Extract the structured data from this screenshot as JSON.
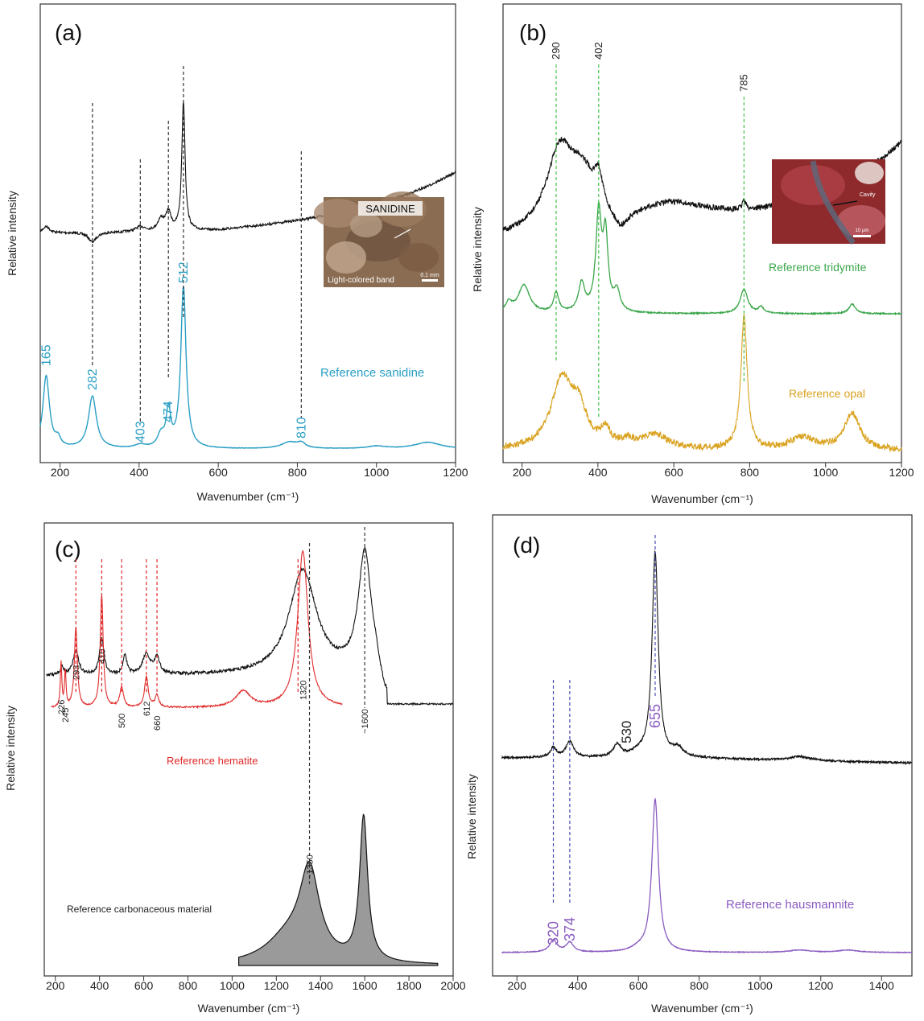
{
  "figure": {
    "panels": [
      {
        "id": "a",
        "label": "(a)",
        "xlabel": "Wavenumber (cm⁻¹)",
        "ylabel": "Relative intensity",
        "xlim": [
          150,
          1200
        ],
        "ticks": [
          200,
          400,
          600,
          800,
          1000,
          1200
        ],
        "ref_label": "Reference sanidine",
        "ref_color": "#2a9fc4",
        "peaks": [
          165,
          282,
          403,
          474,
          512,
          810
        ],
        "dashed_at": [
          282,
          403,
          474,
          512,
          810
        ],
        "dash_color": "#333333",
        "inset": {
          "title": "SANIDINE",
          "caption": "Light-colored band",
          "scale": "0.1 mm"
        }
      },
      {
        "id": "b",
        "label": "(b)",
        "xlabel": "Wavenumber (cm⁻¹)",
        "ylabel": "Relative intensity",
        "xlim": [
          150,
          1200
        ],
        "ticks": [
          200,
          400,
          600,
          800,
          1000,
          1200
        ],
        "ref_label": "Reference tridymite",
        "ref_color": "#3aa64a",
        "ref2_label": "Reference opal",
        "ref2_color": "#d9a21e",
        "peaks": [
          290,
          402,
          785
        ],
        "dash_color": "#46c24a",
        "inset": {
          "caption": "Cavity",
          "scale": "10 µm"
        }
      },
      {
        "id": "c",
        "label": "(c)",
        "xlabel": "Wavenumber (cm⁻¹)",
        "ylabel": "Relative intensity",
        "xlim": [
          150,
          2000
        ],
        "ticks": [
          200,
          400,
          600,
          800,
          1000,
          1200,
          1400,
          1600,
          1800,
          2000
        ],
        "ref_label": "Reference hematite",
        "ref_color": "#e02a2a",
        "ref2_label": "Reference carbonaceous material",
        "ref2_color": "#222222",
        "peaks": [
          "226",
          "245",
          "293",
          "410",
          "500",
          "612",
          "660",
          "1320",
          "~1350",
          "~1600"
        ],
        "dash_color": "#e02a2a"
      },
      {
        "id": "d",
        "label": "(d)",
        "xlabel": "Wavenumber (cm⁻¹)",
        "ylabel": "Relative intensity",
        "xlim": [
          120,
          1500
        ],
        "ticks": [
          200,
          400,
          600,
          800,
          1000,
          1200,
          1400
        ],
        "ref_label": "Reference hausmannite",
        "ref_color": "#8a5cc0",
        "peaks": [
          320,
          374,
          530,
          655
        ],
        "dash_color": "#4a4ab0"
      }
    ]
  },
  "chart_data": [
    {
      "type": "line",
      "panel": "(a)",
      "xlabel": "Wavenumber (cm⁻¹)",
      "ylabel": "Relative intensity",
      "xlim": [
        150,
        1200
      ],
      "series": [
        {
          "values": [
            [
              150,
              0.52
            ],
            [
              165,
              0.57
            ],
            [
              200,
              0.48
            ],
            [
              282,
              0.56
            ],
            [
              350,
              0.52
            ],
            [
              403,
              0.55
            ],
            [
              474,
              0.66
            ],
            [
              512,
              0.97
            ],
            [
              560,
              0.6
            ],
            [
              700,
              0.63
            ],
            [
              810,
              0.68
            ],
            [
              900,
              0.74
            ],
            [
              1000,
              0.84
            ],
            [
              1100,
              1.02
            ],
            [
              1200,
              1.35
            ]
          ]
        },
        {
          "name": "Reference sanidine",
          "values": [
            [
              150,
              0.05
            ],
            [
              165,
              0.24
            ],
            [
              195,
              0.05
            ],
            [
              282,
              0.17
            ],
            [
              330,
              0.02
            ],
            [
              403,
              0.02
            ],
            [
              455,
              0.06
            ],
            [
              474,
              0.11
            ],
            [
              512,
              0.52
            ],
            [
              560,
              0.01
            ],
            [
              800,
              0.01
            ],
            [
              810,
              0.02
            ],
            [
              1000,
              0.005
            ],
            [
              1130,
              0.015
            ],
            [
              1200,
              0.005
            ]
          ]
        }
      ],
      "annotations": [
        "165",
        "282",
        "403",
        "474",
        "512",
        "810"
      ]
    },
    {
      "type": "line",
      "panel": "(b)",
      "xlabel": "Wavenumber (cm⁻¹)",
      "ylabel": "Relative intensity",
      "xlim": [
        150,
        1200
      ],
      "series": [
        {
          "values": [
            [
              150,
              0.56
            ],
            [
              290,
              0.83
            ],
            [
              350,
              0.8
            ],
            [
              402,
              0.86
            ],
            [
              470,
              0.72
            ],
            [
              600,
              0.7
            ],
            [
              700,
              0.74
            ],
            [
              785,
              0.82
            ],
            [
              900,
              0.86
            ],
            [
              1000,
              0.93
            ],
            [
              1100,
              1.05
            ],
            [
              1200,
              1.2
            ]
          ]
        },
        {
          "name": "Reference tridymite",
          "values": [
            [
              150,
              0.4
            ],
            [
              205,
              0.45
            ],
            [
              260,
              0.39
            ],
            [
              290,
              0.43
            ],
            [
              357,
              0.45
            ],
            [
              402,
              0.6
            ],
            [
              420,
              0.57
            ],
            [
              450,
              0.42
            ],
            [
              500,
              0.38
            ],
            [
              785,
              0.43
            ],
            [
              830,
              0.39
            ],
            [
              1070,
              0.4
            ],
            [
              1200,
              0.38
            ]
          ]
        },
        {
          "name": "Reference opal",
          "values": [
            [
              150,
              0.04
            ],
            [
              310,
              0.22
            ],
            [
              360,
              0.13
            ],
            [
              420,
              0.06
            ],
            [
              550,
              0.07
            ],
            [
              700,
              0.03
            ],
            [
              785,
              0.32
            ],
            [
              830,
              0.04
            ],
            [
              950,
              0.04
            ],
            [
              1070,
              0.1
            ],
            [
              1200,
              0.02
            ]
          ]
        }
      ],
      "annotations": [
        "290",
        "402",
        "785"
      ]
    },
    {
      "type": "line",
      "panel": "(c)",
      "xlabel": "Wavenumber (cm⁻¹)",
      "ylabel": "Relative intensity",
      "xlim": [
        150,
        2000
      ],
      "series": [
        {
          "values": [
            [
              150,
              0.72
            ],
            [
              293,
              0.8
            ],
            [
              410,
              0.84
            ],
            [
              515,
              0.79
            ],
            [
              612,
              0.79
            ],
            [
              750,
              0.7
            ],
            [
              1000,
              0.72
            ],
            [
              1200,
              0.8
            ],
            [
              1320,
              0.96
            ],
            [
              1450,
              0.84
            ],
            [
              1600,
              0.96
            ],
            [
              1700,
              0.66
            ],
            [
              2000,
              0.65
            ]
          ]
        },
        {
          "name": "Reference hematite",
          "values": [
            [
              180,
              0.24
            ],
            [
              226,
              0.33
            ],
            [
              245,
              0.31
            ],
            [
              293,
              0.39
            ],
            [
              350,
              0.24
            ],
            [
              410,
              0.47
            ],
            [
              500,
              0.26
            ],
            [
              612,
              0.3
            ],
            [
              660,
              0.26
            ],
            [
              900,
              0.23
            ],
            [
              1050,
              0.25
            ],
            [
              1200,
              0.24
            ],
            [
              1320,
              0.63
            ],
            [
              1400,
              0.27
            ],
            [
              1500,
              0.24
            ]
          ]
        },
        {
          "name": "Reference carbonaceous material",
          "values": [
            [
              1030,
              0.0
            ],
            [
              1200,
              0.05
            ],
            [
              1350,
              0.2
            ],
            [
              1450,
              0.06
            ],
            [
              1600,
              0.39
            ],
            [
              1700,
              0.01
            ],
            [
              1900,
              0.0
            ]
          ]
        }
      ],
      "annotations": [
        "226",
        "245",
        "293",
        "410",
        "500",
        "612",
        "660",
        "1320",
        "~1350",
        "~1600"
      ]
    },
    {
      "type": "line",
      "panel": "(d)",
      "xlabel": "Wavenumber (cm⁻¹)",
      "ylabel": "Relative intensity",
      "xlim": [
        120,
        1500
      ],
      "series": [
        {
          "values": [
            [
              150,
              0.56
            ],
            [
              320,
              0.59
            ],
            [
              374,
              0.6
            ],
            [
              450,
              0.56
            ],
            [
              530,
              0.58
            ],
            [
              600,
              0.58
            ],
            [
              655,
              1.0
            ],
            [
              720,
              0.57
            ],
            [
              900,
              0.545
            ],
            [
              1130,
              0.55
            ],
            [
              1300,
              0.545
            ],
            [
              1500,
              0.535
            ]
          ]
        },
        {
          "name": "Reference hausmannite",
          "values": [
            [
              150,
              0.01
            ],
            [
              320,
              0.04
            ],
            [
              345,
              0.015
            ],
            [
              374,
              0.035
            ],
            [
              450,
              0.01
            ],
            [
              600,
              0.02
            ],
            [
              655,
              0.45
            ],
            [
              720,
              0.02
            ],
            [
              950,
              0.01
            ],
            [
              1130,
              0.015
            ],
            [
              1290,
              0.015
            ],
            [
              1500,
              0.01
            ]
          ]
        }
      ],
      "annotations": [
        "320",
        "374",
        "530",
        "655"
      ]
    }
  ]
}
